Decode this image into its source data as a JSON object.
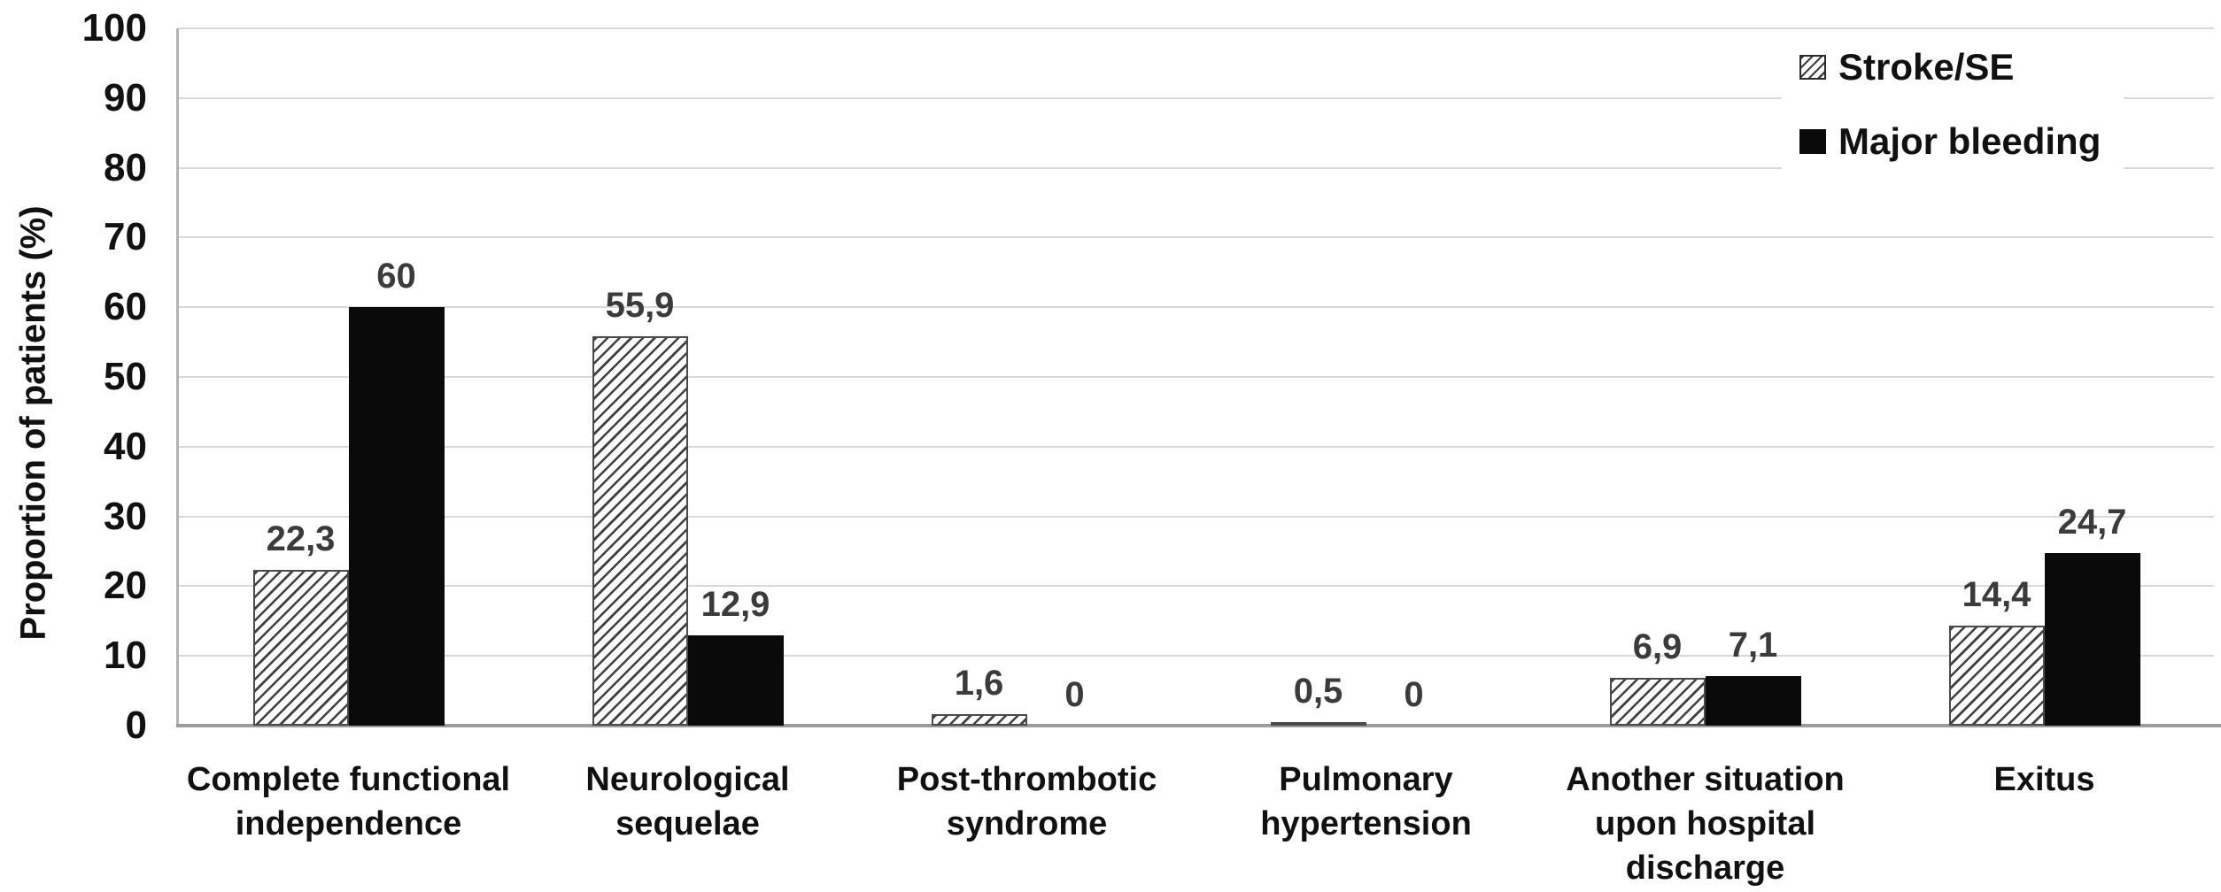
{
  "chart_data": {
    "type": "bar",
    "title": "",
    "xlabel": "",
    "ylabel": "Proportion of patients (%)",
    "ylim": [
      0,
      100
    ],
    "yticks": [
      0,
      10,
      20,
      30,
      40,
      50,
      60,
      70,
      80,
      90,
      100
    ],
    "grid": true,
    "legend_position": "top-right",
    "decimal_separator": ",",
    "categories": [
      "Complete functional\nindependence",
      "Neurological\nsequelae",
      "Post-thrombotic\nsyndrome",
      "Pulmonary\nhypertension",
      "Another situation\nupon hospital\ndischarge",
      "Exitus"
    ],
    "series": [
      {
        "name": "Stroke/SE",
        "swatch": "hatched",
        "values": [
          22.3,
          55.9,
          1.6,
          0.5,
          6.9,
          14.4
        ],
        "value_labels": [
          "22,3",
          "55,9",
          "1,6",
          "0,5",
          "6,9",
          "14,4"
        ]
      },
      {
        "name": "Major bleeding",
        "swatch": "solid-black",
        "values": [
          60,
          12.9,
          0,
          0,
          7.1,
          24.7
        ],
        "value_labels": [
          "60",
          "12,9",
          "0",
          "0",
          "7,1",
          "24,7"
        ]
      }
    ]
  },
  "colors": {
    "background": "#ffffff",
    "bar_solid": "#0a0a0a",
    "hatch_line": "#404040",
    "hatch_border": "#4a4a4a",
    "gridline": "#d9d9d9",
    "axis_line": "#9c9c9c",
    "text": "#111111",
    "value_label": "#3b3b3b"
  }
}
